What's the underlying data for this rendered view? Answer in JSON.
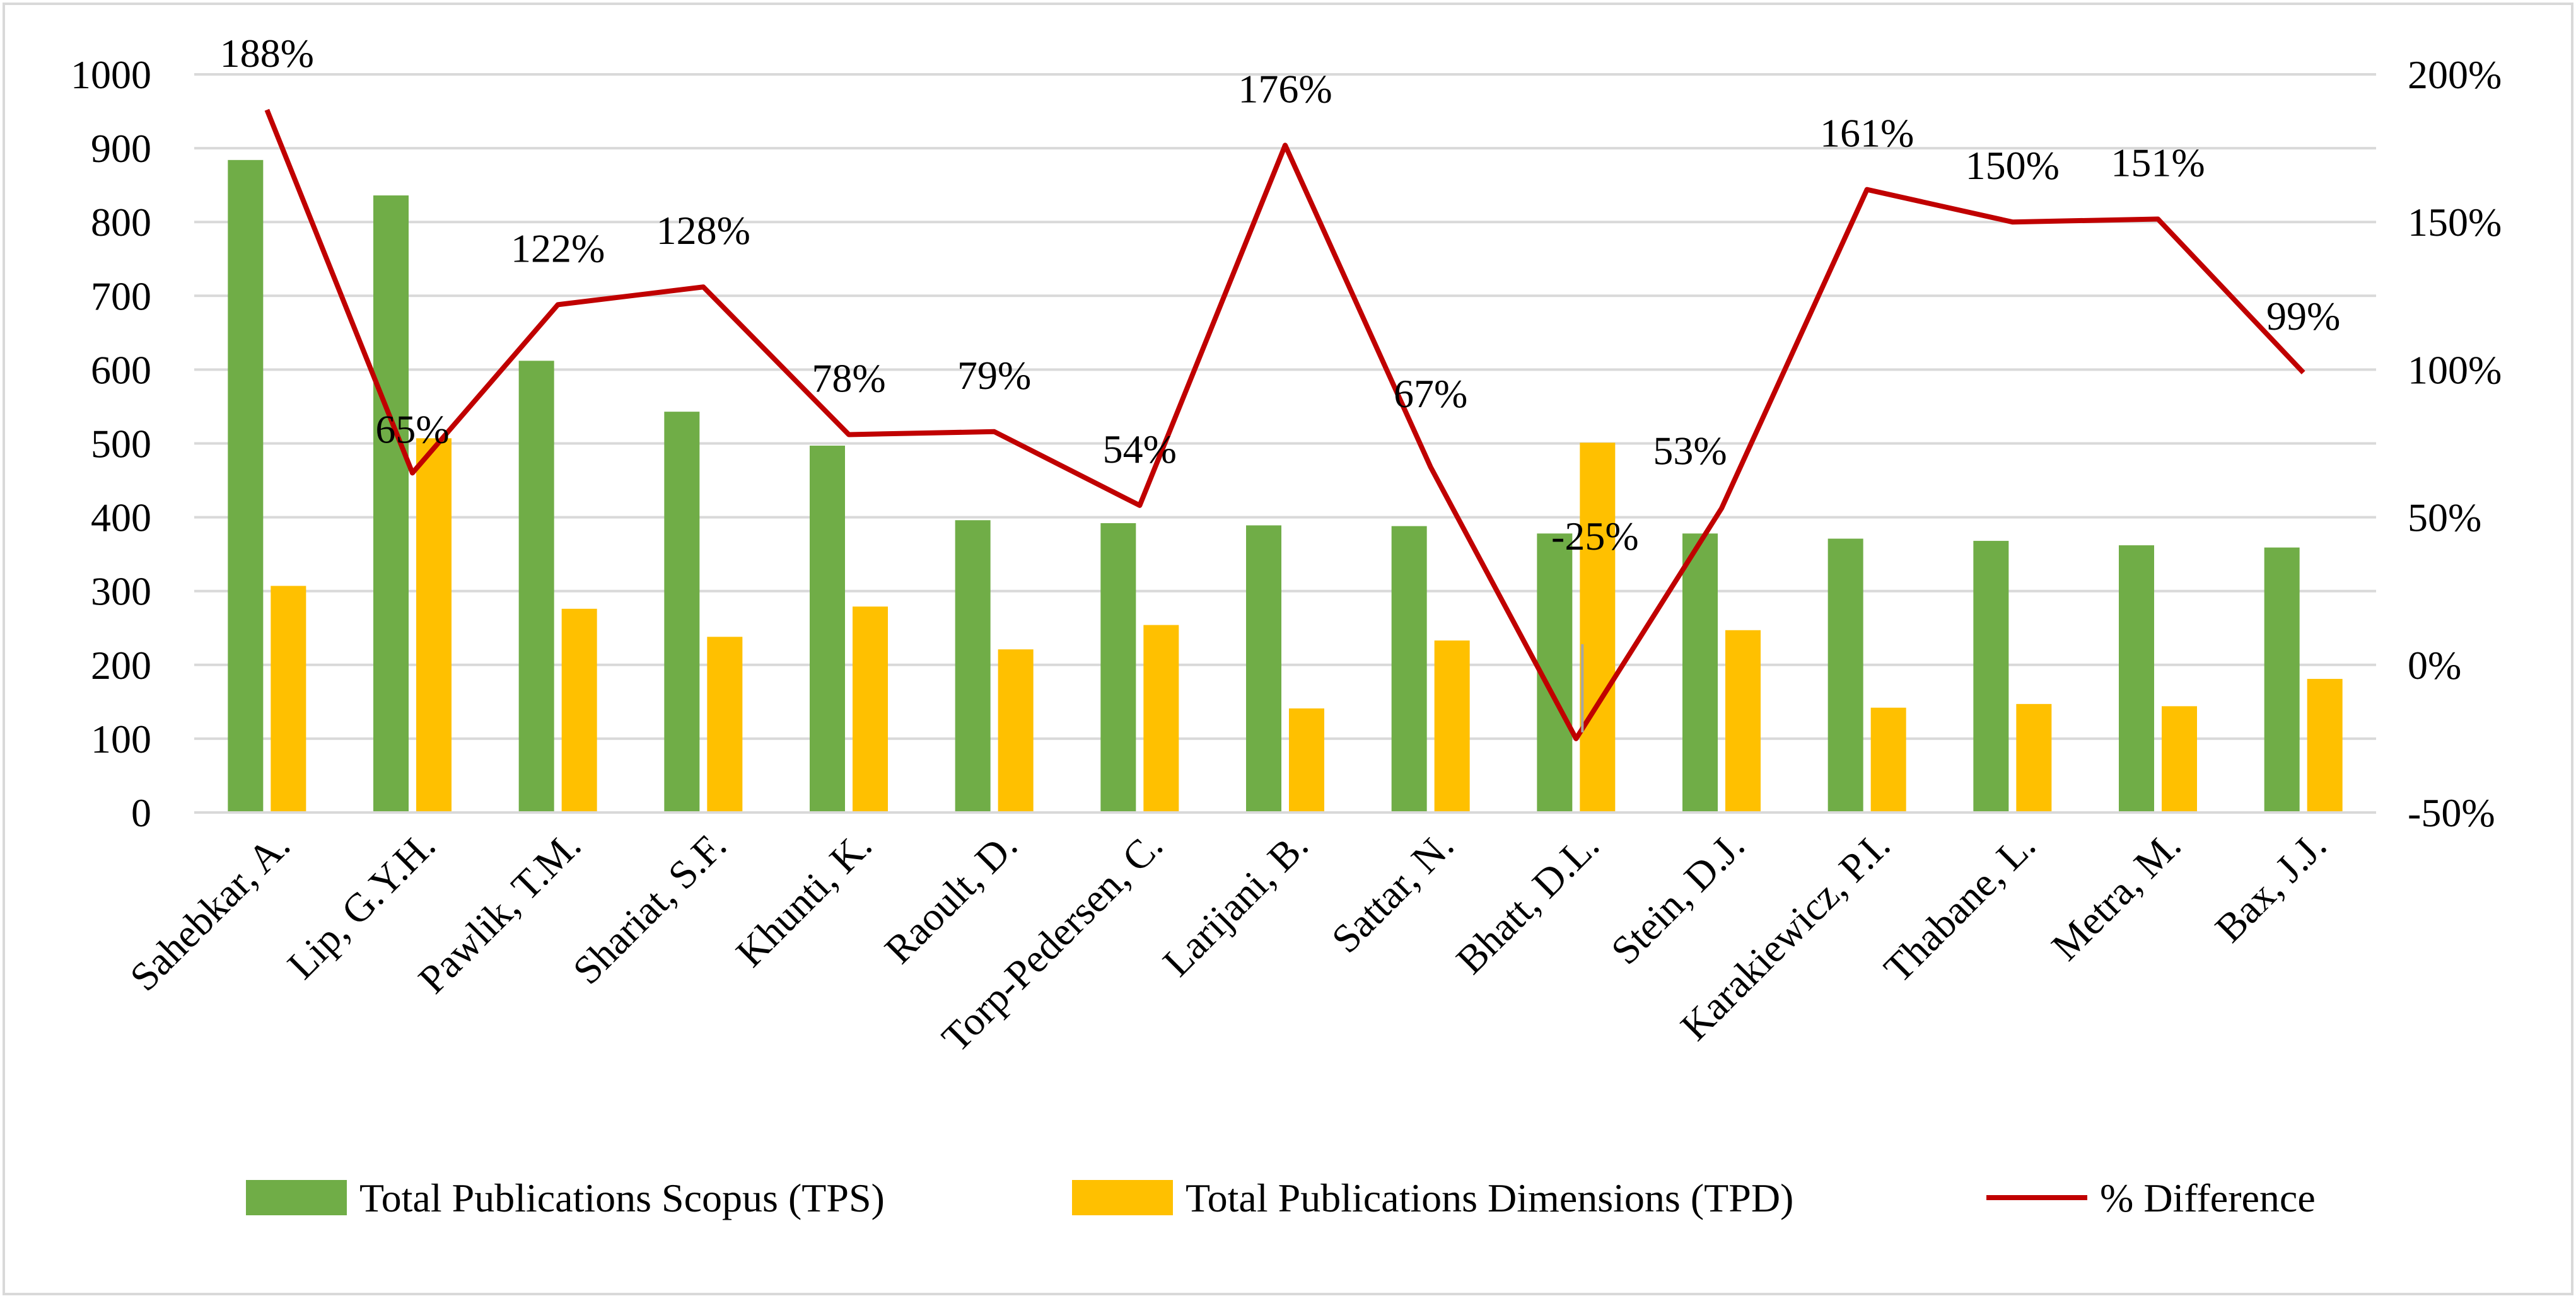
{
  "chart_data": {
    "type": "bar",
    "categories": [
      "Sahebkar, A.",
      "Lip, G.Y.H.",
      "Pawlik, T.M.",
      "Shariat, S.F.",
      "Khunti, K.",
      "Raoult, D.",
      "Torp-Pedersen, C.",
      "Larijani, B.",
      "Sattar, N.",
      "Bhatt, D.L.",
      "Stein, D.J.",
      "Karakiewicz, P.I.",
      "Thabane, L.",
      "Metra, M.",
      "Bax, J.J."
    ],
    "series": [
      {
        "name": "Total Publications Scopus (TPS)",
        "kind": "bar",
        "axis": "left",
        "color": "#70ad47",
        "values": [
          884,
          836,
          612,
          543,
          497,
          396,
          392,
          389,
          388,
          378,
          378,
          371,
          368,
          362,
          359
        ]
      },
      {
        "name": "Total Publications Dimensions (TPD)",
        "kind": "bar",
        "axis": "left",
        "color": "#ffc000",
        "values": [
          307,
          507,
          276,
          238,
          279,
          221,
          254,
          141,
          233,
          501,
          247,
          142,
          147,
          144,
          181
        ]
      },
      {
        "name": "% Difference",
        "kind": "line",
        "axis": "right",
        "color": "#c00000",
        "values": [
          188,
          65,
          122,
          128,
          78,
          79,
          54,
          176,
          67,
          -25,
          53,
          161,
          150,
          151,
          99
        ],
        "labels": [
          "188%",
          "65%",
          "122%",
          "128%",
          "78%",
          "79%",
          "54%",
          "176%",
          "67%",
          "-25%",
          "53%",
          "161%",
          "150%",
          "151%",
          "99%"
        ]
      }
    ],
    "y_left": {
      "min": 0,
      "max": 1000,
      "step": 100,
      "ticks": [
        "0",
        "100",
        "200",
        "300",
        "400",
        "500",
        "600",
        "700",
        "800",
        "900",
        "1000"
      ]
    },
    "y_right": {
      "min": -50,
      "max": 200,
      "step": 50,
      "ticks": [
        "-50%",
        "0%",
        "50%",
        "100%",
        "150%",
        "200%"
      ]
    },
    "grid": true,
    "legend_position": "bottom"
  }
}
